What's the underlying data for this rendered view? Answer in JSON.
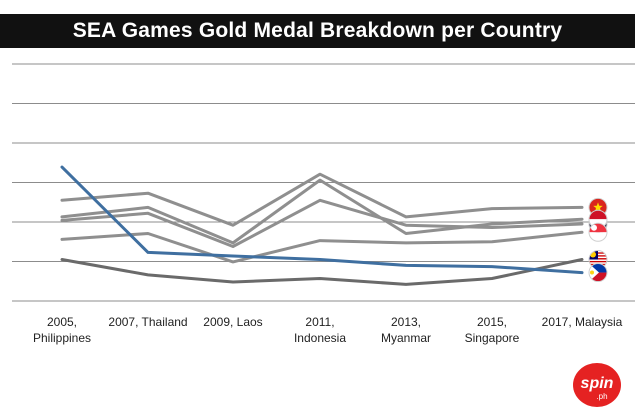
{
  "title": "SEA Games Gold Medal Breakdown per Country",
  "logo": {
    "text": "spin",
    "subtext": ".ph"
  },
  "colors": {
    "title_bg": "#111111",
    "grid": "#8c8c8c",
    "gray_series": "#8f8f8f",
    "dark_series": "#6a6a6a",
    "ph_series": "#3f6fa0",
    "logo_red": "#e52222"
  },
  "chart_data": {
    "type": "line",
    "categories": [
      [
        "2005,",
        "Philippines"
      ],
      [
        "2007, Thailand"
      ],
      [
        "2009, Laos"
      ],
      [
        "2011,",
        "Indonesia"
      ],
      [
        "2013,",
        "Myanmar"
      ],
      [
        "2015,",
        "Singapore"
      ],
      [
        "2017, Malaysia"
      ]
    ],
    "ylim": [
      0,
      200
    ],
    "grid": true,
    "y_gridlines": 6,
    "y_tick_labels": "none",
    "legend": "flags at line ends (right)",
    "series": [
      {
        "flag": "vietnam",
        "values": [
          85,
          91,
          64,
          107,
          71,
          78,
          79
        ]
      },
      {
        "flag": "thailand",
        "values": [
          68,
          74,
          46,
          85,
          64,
          62,
          65
        ]
      },
      {
        "flag": "indonesia",
        "values": [
          71,
          79,
          49,
          102,
          57,
          65,
          69
        ]
      },
      {
        "flag": "singapore",
        "values": [
          52,
          57,
          33,
          51,
          49,
          50,
          58
        ]
      },
      {
        "flag": "malaysia",
        "values": [
          35,
          22,
          16,
          19,
          14,
          19,
          35
        ]
      },
      {
        "flag": "philippines",
        "values": [
          113,
          41,
          38,
          35,
          30,
          29,
          24
        ]
      }
    ]
  }
}
